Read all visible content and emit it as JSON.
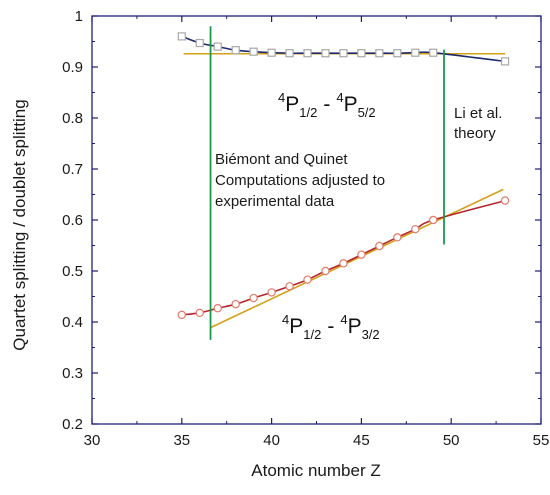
{
  "chart_data": {
    "type": "line",
    "xlabel": "Atomic number Z",
    "ylabel": "Quartet splitting / doublet splitting",
    "xlim": [
      30,
      55
    ],
    "ylim": [
      0.2,
      1.0
    ],
    "xticks": [
      "30",
      "35",
      "40",
      "45",
      "50",
      "55"
    ],
    "yticks": [
      "0.2",
      "0.3",
      "0.4",
      "0.5",
      "0.6",
      "0.7",
      "0.8",
      "0.9",
      "1"
    ],
    "colors": {
      "axis": "#1f1f7a",
      "upper_curve": "#1e2a6e",
      "lower_curve": "#b3262d",
      "theory": "#d4a017",
      "boundary": "#1a9a4a",
      "square_marker": "#a8a8a8",
      "circle_marker": "#e07a6a"
    },
    "annotations": {
      "upper_term": {
        "t1": "P",
        "sup1": "4",
        "sub1": "1/2",
        "dash": "-",
        "t2": "P",
        "sup2": "4",
        "sub2": "5/2"
      },
      "lower_term": {
        "t1": "P",
        "sup1": "4",
        "sub1": "1/2",
        "dash": "-",
        "t2": "P",
        "sup2": "4",
        "sub2": "3/2"
      },
      "theory_label": [
        "Li et al.",
        "theory"
      ],
      "computation_label": [
        "Biémont and Quinet",
        "Computations adjusted to",
        "experimental data"
      ]
    },
    "boundaries": [
      {
        "x": 36.6,
        "y_range": [
          0.365,
          0.98
        ]
      },
      {
        "x": 49.6,
        "y_range": [
          0.552,
          0.934
        ]
      }
    ],
    "series": [
      {
        "marker": "square",
        "x": [
          35,
          36,
          37,
          38,
          39,
          40,
          41,
          42,
          43,
          44,
          45,
          46,
          47,
          48,
          49,
          53
        ],
        "y": [
          0.96,
          0.947,
          0.94,
          0.933,
          0.93,
          0.928,
          0.927,
          0.927,
          0.927,
          0.927,
          0.927,
          0.927,
          0.927,
          0.928,
          0.928,
          0.911
        ]
      },
      {
        "marker": "circle",
        "x": [
          35,
          36,
          37,
          38,
          39,
          40,
          41,
          42,
          43,
          44,
          45,
          46,
          47,
          48,
          49,
          53
        ],
        "y": [
          0.414,
          0.418,
          0.427,
          0.435,
          0.447,
          0.458,
          0.47,
          0.483,
          0.5,
          0.515,
          0.532,
          0.549,
          0.566,
          0.582,
          0.6,
          0.638
        ]
      },
      {
        "marker": "none",
        "x": [
          35.1,
          53.0
        ],
        "y": [
          0.926,
          0.926
        ]
      },
      {
        "marker": "none",
        "x": [
          36.6,
          52.9
        ],
        "y": [
          0.389,
          0.66
        ]
      }
    ]
  }
}
